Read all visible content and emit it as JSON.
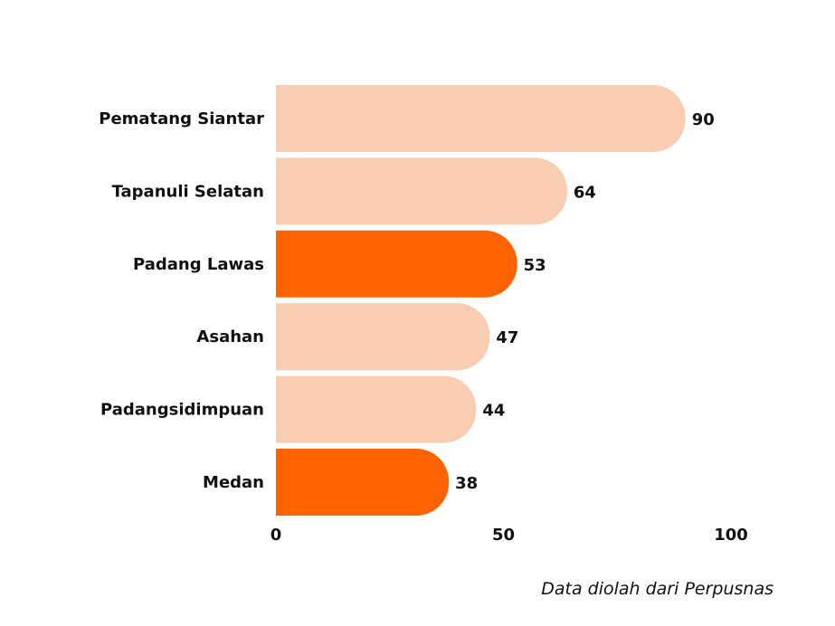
{
  "chart_data": {
    "type": "bar",
    "orientation": "horizontal",
    "categories": [
      "Pematang Siantar",
      "Tapanuli Selatan",
      "Padang Lawas",
      "Asahan",
      "Padangsidimpuan",
      "Medan"
    ],
    "values": [
      90,
      64,
      53,
      47,
      44,
      38
    ],
    "highlighted": [
      "Padang Lawas",
      "Medan"
    ],
    "xlim": [
      0,
      100
    ],
    "xticks": [
      "0",
      "50",
      "100"
    ],
    "grid": false,
    "legend": "none",
    "colors": {
      "default": "#F8CDB1",
      "highlight": "#FF6200"
    }
  },
  "source_note": "Data diolah dari Perpusnas"
}
